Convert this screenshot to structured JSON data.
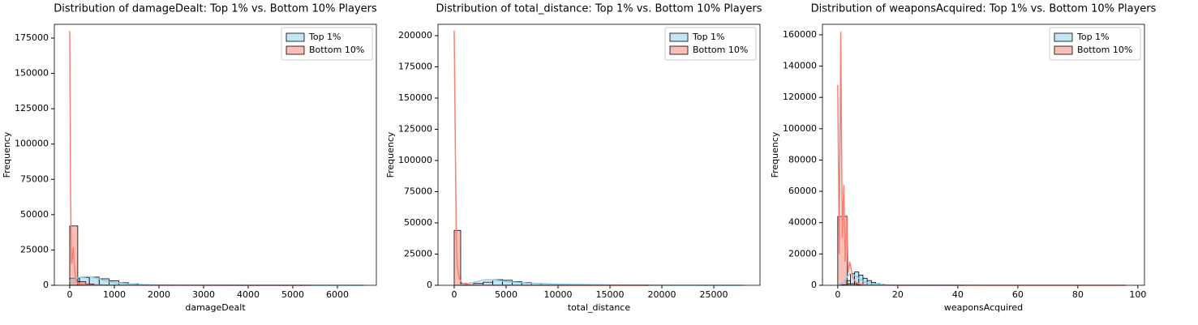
{
  "chart_data": [
    {
      "type": "histogram",
      "title": "Distribution of damageDealt: Top 1% vs. Bottom 10% Players",
      "x_label": "damageDealt",
      "y_label": "Frequency",
      "xlim": [
        -345,
        6873
      ],
      "ylim": [
        0,
        184750
      ],
      "xticks": [
        0,
        1000,
        2000,
        3000,
        4000,
        5000,
        6000
      ],
      "yticks": [
        0,
        25000,
        50000,
        75000,
        100000,
        125000,
        150000,
        175000
      ],
      "legend": "upper right",
      "series": [
        {
          "name": "Top 1%",
          "color": "#87ceeb",
          "bins": [
            0,
            220,
            440,
            660,
            880,
            1100,
            1320,
            1540,
            1760,
            1980,
            2200,
            2420,
            2640,
            2860,
            3080,
            3300,
            3520,
            3740,
            3960,
            4180,
            4400,
            4620,
            4840,
            5060,
            5280,
            5500,
            5720,
            5940,
            6160,
            6380,
            6600
          ],
          "values": [
            5000,
            5600,
            5800,
            4600,
            3200,
            1800,
            1000,
            600,
            350,
            200,
            120,
            80,
            50,
            30,
            20,
            15,
            10,
            8,
            5,
            4,
            3,
            2,
            2,
            1,
            1,
            1,
            0,
            0,
            0,
            1
          ],
          "kde": {
            "x": [
              0,
              200,
              400,
              600,
              800,
              1000,
              1500,
              2000,
              3000,
              4000,
              6600
            ],
            "values": [
              3000,
              5500,
              6200,
              5000,
              3200,
              1800,
              600,
              250,
              80,
              30,
              0
            ]
          }
        },
        {
          "name": "Bottom 10%",
          "color": "#fa8072",
          "bins": [
            0,
            180,
            360,
            540,
            720,
            900,
            1080,
            1260,
            1440,
            1620,
            1800,
            1980,
            2160,
            2340,
            2520,
            2700,
            2880,
            3060,
            3240,
            3420,
            3600,
            3780,
            3960,
            4140,
            4320,
            4500,
            4680,
            4860,
            5040,
            5220,
            5400
          ],
          "values": [
            42000,
            2500,
            900,
            400,
            200,
            100,
            60,
            40,
            30,
            20,
            15,
            10,
            8,
            6,
            5,
            4,
            3,
            3,
            2,
            2,
            2,
            1,
            1,
            1,
            1,
            1,
            0,
            0,
            0,
            1
          ],
          "kde": {
            "x": [
              0,
              20,
              40,
              60,
              80,
              100,
              130,
              160,
              200,
              300,
              500,
              1000,
              2000,
              4000,
              5400
            ],
            "values": [
              180000,
              60000,
              15000,
              20000,
              27000,
              15000,
              5000,
              2000,
              1000,
              600,
              300,
              150,
              80,
              30,
              0
            ]
          }
        }
      ]
    },
    {
      "type": "histogram",
      "title": "Distribution of total_distance: Top 1% vs. Bottom 10% Players",
      "x_label": "total_distance",
      "y_label": "Frequency",
      "xlim": [
        -1560,
        29450
      ],
      "ylim": [
        0,
        209100
      ],
      "xticks": [
        0,
        5000,
        10000,
        15000,
        20000,
        25000
      ],
      "yticks": [
        0,
        25000,
        50000,
        75000,
        100000,
        125000,
        150000,
        175000,
        200000
      ],
      "legend": "upper right",
      "series": [
        {
          "name": "Top 1%",
          "color": "#87ceeb",
          "bins": [
            0,
            930,
            1860,
            2790,
            3720,
            4650,
            5580,
            6510,
            7440,
            8370,
            9300,
            10230,
            11160,
            12090,
            13020,
            13950,
            14880,
            15810,
            16740,
            17670,
            18600,
            19530,
            20460,
            21390,
            22320,
            23250,
            24180,
            25110,
            26040,
            26970,
            27900
          ],
          "values": [
            100,
            300,
            1500,
            2500,
            4500,
            4000,
            3000,
            2200,
            1600,
            1200,
            900,
            700,
            500,
            400,
            300,
            250,
            200,
            150,
            120,
            100,
            80,
            60,
            50,
            40,
            30,
            20,
            15,
            10,
            5,
            2
          ],
          "kde": {
            "x": [
              0,
              1000,
              2000,
              3000,
              4000,
              5000,
              7000,
              10000,
              15000,
              20000,
              28000
            ],
            "values": [
              0,
              800,
              2500,
              4500,
              4200,
              3000,
              1800,
              900,
              300,
              100,
              0
            ]
          }
        },
        {
          "name": "Bottom 10%",
          "color": "#fa8072",
          "bins": [
            0,
            625,
            1250,
            1875,
            2500,
            3125,
            3750,
            4375,
            5000,
            5625,
            6250,
            6875,
            7500,
            8125,
            8750,
            9375,
            10000,
            10625,
            11250,
            11875,
            12500,
            13125,
            13750,
            14375,
            15000,
            15625,
            16250,
            16875,
            17500,
            18125,
            18750
          ],
          "values": [
            44000,
            1500,
            300,
            100,
            50,
            30,
            20,
            10,
            8,
            6,
            5,
            4,
            3,
            3,
            2,
            2,
            2,
            1,
            1,
            1,
            1,
            1,
            1,
            0,
            0,
            0,
            0,
            0,
            0,
            1
          ],
          "kde": {
            "x": [
              0,
              100,
              200,
              300,
              500,
              800,
              1500,
              3000,
              10000,
              18750
            ],
            "values": [
              204000,
              120000,
              40000,
              15000,
              5000,
              1500,
              500,
              100,
              20,
              0
            ]
          }
        }
      ]
    },
    {
      "type": "histogram",
      "title": "Distribution of weaponsAcquired: Top 1% vs. Bottom 10% Players",
      "x_label": "weaponsAcquired",
      "y_label": "Frequency",
      "xlim": [
        -5.1,
        102.2
      ],
      "ylim": [
        0,
        166700
      ],
      "xticks": [
        0,
        20,
        40,
        60,
        80,
        100
      ],
      "yticks": [
        0,
        20000,
        40000,
        60000,
        80000,
        100000,
        120000,
        140000,
        160000
      ],
      "legend": "upper right",
      "series": [
        {
          "name": "Top 1%",
          "color": "#87ceeb",
          "bins": [
            0,
            1.4,
            2.8,
            4.2,
            5.6,
            7,
            8.4,
            9.8,
            11.2,
            12.6,
            14,
            15.4,
            16.8,
            18.2,
            19.6,
            21,
            22.4,
            23.8,
            25.2,
            26.6,
            28,
            29.4,
            30.8,
            32.2,
            33.6,
            35,
            36.4,
            37.8,
            39.2,
            40.6,
            42
          ],
          "values": [
            100,
            500,
            3000,
            7500,
            8500,
            6500,
            4500,
            3000,
            1800,
            1000,
            600,
            300,
            200,
            100,
            60,
            40,
            20,
            10,
            5,
            3,
            2,
            1,
            1,
            1,
            0,
            0,
            0,
            0,
            0,
            1
          ],
          "kde": {
            "x": [
              0,
              2,
              3,
              4,
              5,
              6,
              7,
              8,
              10,
              15,
              20,
              42
            ],
            "values": [
              0,
              2000,
              5000,
              7500,
              7000,
              6000,
              4500,
              3000,
              1500,
              300,
              50,
              0
            ]
          }
        },
        {
          "name": "Bottom 10%",
          "color": "#fa8072",
          "bins": [
            0,
            3.2,
            6.4,
            9.6,
            12.8,
            16,
            19.2,
            22.4,
            25.6,
            28.8,
            32,
            35.2,
            38.4,
            41.6,
            44.8,
            48,
            51.2,
            54.4,
            57.6,
            60.8,
            64,
            67.2,
            70.4,
            73.6,
            76.8,
            80,
            83.2,
            86.4,
            89.6,
            92.8,
            96
          ],
          "values": [
            44000,
            1000,
            200,
            80,
            40,
            20,
            10,
            5,
            3,
            2,
            2,
            1,
            1,
            1,
            1,
            0,
            0,
            0,
            0,
            0,
            0,
            0,
            0,
            0,
            0,
            0,
            0,
            0,
            0,
            1
          ],
          "kde": {
            "x": [
              0,
              0.5,
              1,
              1.5,
              2,
              2.5,
              3,
              3.5,
              4,
              5,
              6,
              8,
              10,
              20,
              50,
              96
            ],
            "values": [
              128000,
              20000,
              162000,
              30000,
              64000,
              15000,
              45000,
              8000,
              15000,
              5000,
              2000,
              500,
              200,
              50,
              10,
              0
            ]
          }
        }
      ]
    }
  ]
}
